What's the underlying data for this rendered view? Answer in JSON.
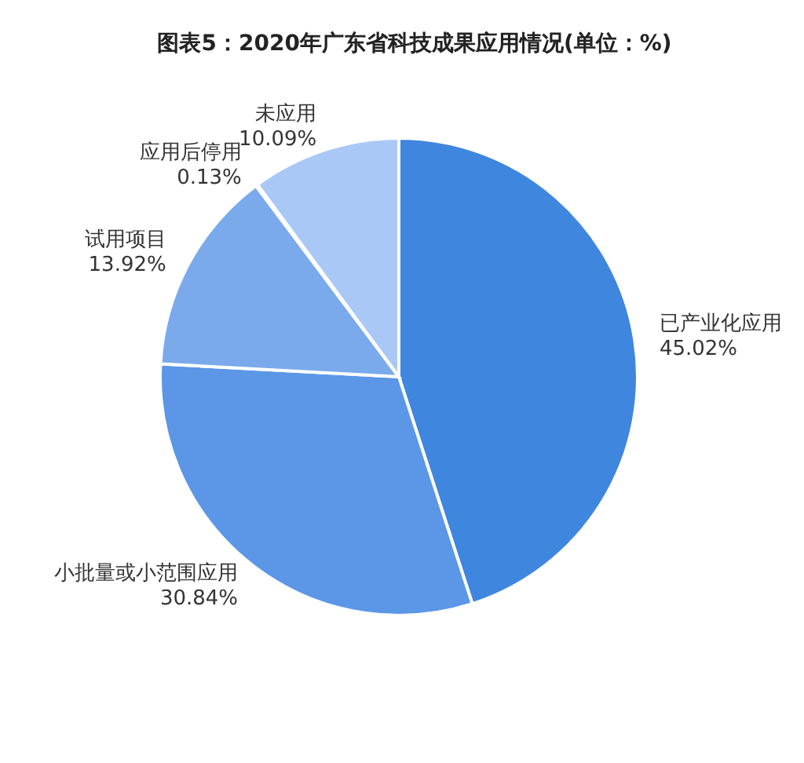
{
  "chart_data": {
    "type": "pie",
    "title": "图表5：2020年广东省科技成果应用情况(单位：%)",
    "categories": [
      "已产业化应用",
      "小批量或小范围应用",
      "试用项目",
      "应用后停用",
      "未应用"
    ],
    "values": [
      45.02,
      30.84,
      13.92,
      0.13,
      10.09
    ],
    "value_labels": [
      "45.02%",
      "30.84%",
      "13.92%",
      "0.13%",
      "10.09%"
    ],
    "colors": [
      "#3f86de",
      "#5b97e6",
      "#7aaaeb",
      "#8fb8ef",
      "#a9c8f5"
    ]
  }
}
